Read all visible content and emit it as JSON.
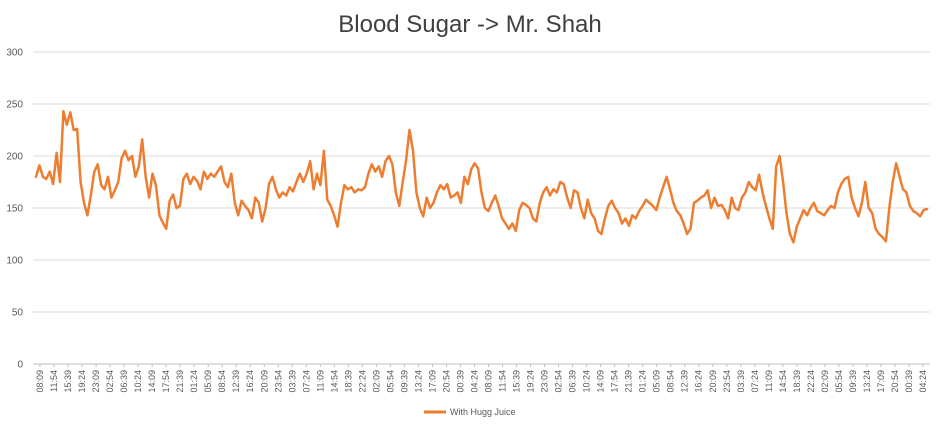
{
  "chart_data": {
    "type": "line",
    "title": "Blood Sugar -> Mr. Shah",
    "xlabel": "",
    "ylabel": "",
    "ylim": [
      0,
      300
    ],
    "yticks": [
      0,
      50,
      100,
      150,
      200,
      250,
      300
    ],
    "grid": true,
    "legend_position": "bottom",
    "x_tick_labels": [
      "08:09",
      "11:54",
      "15:39",
      "19:24",
      "23:09",
      "02:54",
      "06:39",
      "10:24",
      "14:09",
      "17:54",
      "21:39",
      "01:24",
      "05:09",
      "08:54",
      "12:39",
      "16:24",
      "20:09",
      "23:54",
      "03:39",
      "07:24",
      "11:09",
      "14:54",
      "18:39",
      "22:24",
      "02:09",
      "05:54",
      "09:39",
      "13:24",
      "17:09",
      "20:54",
      "00:39",
      "04:24",
      "08:09",
      "11:54",
      "15:39",
      "19:24",
      "23:09",
      "02:54",
      "06:39",
      "10:24",
      "14:09",
      "17:54",
      "21:39",
      "01:24",
      "05:09",
      "08:54",
      "12:39",
      "16:24",
      "20:09",
      "23:54",
      "03:39",
      "07:24",
      "11:09",
      "14:54",
      "18:39",
      "22:24",
      "02:09",
      "05:54",
      "09:39",
      "13:24",
      "17:09",
      "20:54",
      "00:39",
      "04:24"
    ],
    "series": [
      {
        "name": "With Hugg Juice",
        "color": "#ED7D31",
        "values": [
          180,
          191,
          180,
          178,
          185,
          173,
          203,
          175,
          243,
          230,
          242,
          225,
          226,
          175,
          155,
          143,
          162,
          185,
          192,
          172,
          168,
          180,
          160,
          167,
          175,
          198,
          205,
          196,
          200,
          180,
          190,
          216,
          180,
          160,
          183,
          172,
          143,
          136,
          130,
          157,
          163,
          150,
          152,
          178,
          183,
          173,
          180,
          176,
          168,
          185,
          178,
          183,
          180,
          185,
          190,
          175,
          170,
          183,
          155,
          143,
          157,
          152,
          148,
          140,
          160,
          155,
          137,
          150,
          173,
          180,
          168,
          160,
          165,
          162,
          170,
          166,
          175,
          183,
          175,
          183,
          195,
          168,
          183,
          172,
          205,
          158,
          152,
          143,
          132,
          155,
          172,
          168,
          170,
          165,
          168,
          167,
          170,
          183,
          192,
          185,
          190,
          180,
          195,
          200,
          192,
          165,
          152,
          175,
          196,
          225,
          205,
          165,
          150,
          142,
          160,
          150,
          155,
          165,
          172,
          168,
          173,
          160,
          162,
          165,
          155,
          180,
          173,
          187,
          193,
          188,
          165,
          150,
          147,
          155,
          162,
          152,
          140,
          135,
          130,
          135,
          128,
          148,
          155,
          153,
          150,
          140,
          137,
          155,
          165,
          170,
          162,
          168,
          165,
          175,
          173,
          160,
          150,
          167,
          165,
          150,
          140,
          158,
          145,
          140,
          128,
          125,
          140,
          152,
          157,
          150,
          145,
          135,
          140,
          133,
          143,
          140,
          147,
          152,
          158,
          155,
          152,
          148,
          160,
          170,
          180,
          168,
          155,
          147,
          143,
          135,
          125,
          130,
          155,
          157,
          160,
          162,
          167,
          150,
          160,
          152,
          153,
          148,
          140,
          160,
          150,
          148,
          160,
          165,
          175,
          170,
          167,
          182,
          165,
          152,
          140,
          130,
          190,
          200,
          175,
          145,
          125,
          117,
          132,
          140,
          148,
          143,
          150,
          155,
          147,
          145,
          143,
          148,
          152,
          150,
          165,
          173,
          178,
          180,
          160,
          150,
          142,
          155,
          175,
          150,
          145,
          130,
          125,
          122,
          118,
          150,
          175,
          193,
          180,
          168,
          165,
          152,
          147,
          145,
          142,
          148,
          149
        ]
      }
    ]
  }
}
